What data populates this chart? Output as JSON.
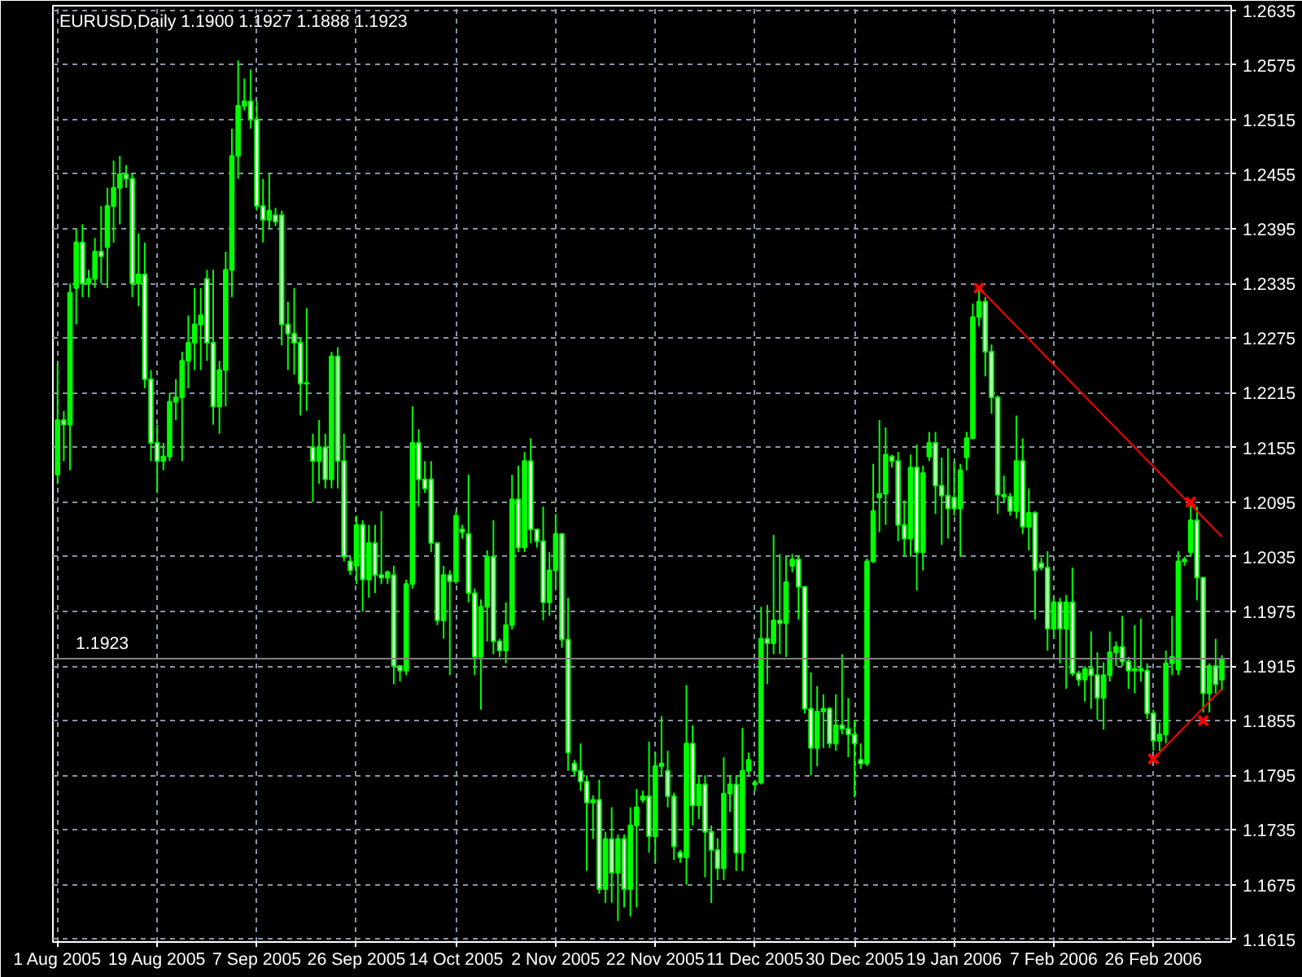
{
  "chart_data": {
    "type": "candlestick",
    "title": "EURUSD,Daily  1.1900 1.1927 1.1888 1.1923",
    "categories": [
      "1 Aug 2005",
      null,
      null,
      null,
      null,
      null,
      null,
      null,
      null,
      null,
      null,
      null,
      null,
      null,
      null,
      null,
      "19 Aug 2005",
      null,
      null,
      null,
      null,
      null,
      null,
      null,
      null,
      null,
      null,
      null,
      null,
      null,
      null,
      null,
      "7 Sep 2005",
      null,
      null,
      null,
      null,
      null,
      null,
      null,
      null,
      null,
      null,
      null,
      null,
      null,
      null,
      null,
      "26 Sep 2005",
      null,
      null,
      null,
      null,
      null,
      null,
      null,
      null,
      null,
      null,
      null,
      null,
      null,
      null,
      null,
      "14 Oct 2005",
      null,
      null,
      null,
      null,
      null,
      null,
      null,
      null,
      null,
      null,
      null,
      null,
      null,
      null,
      null,
      "2 Nov 2005",
      null,
      null,
      null,
      null,
      null,
      null,
      null,
      null,
      null,
      null,
      null,
      null,
      null,
      null,
      null,
      "22 Nov 2005",
      null,
      null,
      null,
      null,
      null,
      null,
      null,
      null,
      null,
      null,
      null,
      null,
      null,
      null,
      null,
      "11 Dec 2005",
      null,
      null,
      null,
      null,
      null,
      null,
      null,
      null,
      null,
      null,
      null,
      null,
      null,
      null,
      null,
      "30 Dec 2005",
      null,
      null,
      null,
      null,
      null,
      null,
      null,
      null,
      null,
      null,
      null,
      null,
      null,
      null,
      null,
      "19 Jan 2006",
      null,
      null,
      null,
      null,
      null,
      null,
      null,
      null,
      null,
      null,
      null,
      null,
      null,
      null,
      null,
      "7 Feb 2006",
      null,
      null,
      null,
      null,
      null,
      null,
      null,
      null,
      null,
      null,
      null,
      null,
      null,
      null,
      null,
      "26 Feb 2006",
      null,
      null,
      null,
      null,
      null,
      null,
      null,
      null,
      null,
      null,
      null
    ],
    "ylim": [
      1.1612,
      1.264
    ],
    "yticks": [
      1.1615,
      1.1675,
      1.1735,
      1.1795,
      1.1855,
      1.1915,
      1.1975,
      1.2035,
      1.2095,
      1.2155,
      1.2215,
      1.2275,
      1.2335,
      1.2395,
      1.2455,
      1.2515,
      1.2575,
      1.2635
    ],
    "grid": true,
    "ref_lines": [
      {
        "axis": "y",
        "value": 1.1923,
        "label": "1.1923",
        "color": "#808080"
      }
    ],
    "series": [
      {
        "color": "#00ff00",
        "ohlc": [
          [
            1.2125,
            1.2247,
            1.2115,
            1.2185
          ],
          [
            1.2185,
            1.2195,
            1.214,
            1.218
          ],
          [
            1.218,
            1.2335,
            1.213,
            1.2325
          ],
          [
            1.233,
            1.2395,
            1.229,
            1.238
          ],
          [
            1.238,
            1.24,
            1.232,
            1.2335
          ],
          [
            1.2335,
            1.235,
            1.232,
            1.234
          ],
          [
            1.234,
            1.2385,
            1.233,
            1.237
          ],
          [
            1.237,
            1.242,
            1.2335,
            1.2365
          ],
          [
            1.2375,
            1.244,
            1.233,
            1.242
          ],
          [
            1.242,
            1.247,
            1.238,
            1.244
          ],
          [
            1.244,
            1.2475,
            1.24,
            1.2455
          ],
          [
            1.2455,
            1.2465,
            1.244,
            1.245
          ],
          [
            1.245,
            1.2455,
            1.232,
            1.2335
          ],
          [
            1.2335,
            1.239,
            1.231,
            1.2345
          ],
          [
            1.2345,
            1.238,
            1.222,
            1.223
          ],
          [
            1.223,
            1.224,
            1.214,
            1.216
          ],
          [
            1.216,
            1.218,
            1.2105,
            1.214
          ],
          [
            1.214,
            1.216,
            1.213,
            1.2145
          ],
          [
            1.2145,
            1.2215,
            1.214,
            1.2205
          ],
          [
            1.2205,
            1.223,
            1.2185,
            1.221
          ],
          [
            1.221,
            1.226,
            1.214,
            1.225
          ],
          [
            1.225,
            1.23,
            1.222,
            1.227
          ],
          [
            1.227,
            1.233,
            1.224,
            1.229
          ],
          [
            1.229,
            1.233,
            1.224,
            1.23
          ],
          [
            1.234,
            1.235,
            1.225,
            1.227
          ],
          [
            1.227,
            1.235,
            1.218,
            1.22
          ],
          [
            1.22,
            1.225,
            1.217,
            1.224
          ],
          [
            1.224,
            1.237,
            1.22,
            1.235
          ],
          [
            1.235,
            1.2505,
            1.232,
            1.2475
          ],
          [
            1.2475,
            1.258,
            1.245,
            1.253
          ],
          [
            1.253,
            1.256,
            1.2525,
            1.2535
          ],
          [
            1.2535,
            1.257,
            1.2505,
            1.2515
          ],
          [
            1.2515,
            1.2535,
            1.2415,
            1.242
          ],
          [
            1.242,
            1.245,
            1.238,
            1.2405
          ],
          [
            1.2405,
            1.2456,
            1.2395,
            1.2415
          ],
          [
            1.241,
            1.2418,
            1.2398,
            1.2403
          ],
          [
            1.241,
            1.2415,
            1.2267,
            1.229
          ],
          [
            1.229,
            1.2315,
            1.224,
            1.228
          ],
          [
            1.228,
            1.233,
            1.2235,
            1.227
          ],
          [
            1.227,
            1.2275,
            1.219,
            1.2225
          ],
          [
            1.2225,
            1.2308,
            1.2195,
            1.2226
          ],
          [
            1.2155,
            1.217,
            1.2095,
            1.214
          ],
          [
            1.214,
            1.2185,
            1.2115,
            1.2155
          ],
          [
            1.2155,
            1.217,
            1.211,
            1.212
          ],
          [
            1.212,
            1.226,
            1.211,
            1.2255
          ],
          [
            1.2255,
            1.2265,
            1.211,
            1.214
          ],
          [
            1.214,
            1.217,
            1.203,
            1.2035
          ],
          [
            1.203,
            1.2035,
            1.2015,
            1.202
          ],
          [
            1.2025,
            1.208,
            1.2005,
            1.207
          ],
          [
            1.207,
            1.2075,
            1.1975,
            1.201
          ],
          [
            1.201,
            1.207,
            1.199,
            1.205
          ],
          [
            1.205,
            1.207,
            1.1995,
            1.2015
          ],
          [
            1.2015,
            1.2085,
            1.2005,
            1.2012
          ],
          [
            1.2012,
            1.202,
            1.2005,
            1.2018
          ],
          [
            1.2015,
            1.2025,
            1.1895,
            1.1915
          ],
          [
            1.1915,
            1.1915,
            1.1898,
            1.191
          ],
          [
            1.191,
            1.201,
            1.1905,
            1.2005
          ],
          [
            1.2005,
            1.22,
            1.2,
            1.216
          ],
          [
            1.216,
            1.2175,
            1.209,
            1.212
          ],
          [
            1.212,
            1.214,
            1.2105,
            1.211
          ],
          [
            1.212,
            1.214,
            1.204,
            1.205
          ],
          [
            1.205,
            1.205,
            1.196,
            1.1965
          ],
          [
            1.1965,
            1.2025,
            1.1945,
            1.2015
          ],
          [
            1.2015,
            1.202,
            1.1905,
            1.2008
          ],
          [
            1.2008,
            1.2085,
            1.2005,
            1.208
          ],
          [
            1.2065,
            1.207,
            1.2055,
            1.2062
          ],
          [
            1.206,
            1.2125,
            1.1985,
            1.1995
          ],
          [
            1.1995,
            1.2,
            1.1905,
            1.1925
          ],
          [
            1.1925,
            1.1988,
            1.1867,
            1.198
          ],
          [
            1.198,
            1.2042,
            1.1942,
            1.2035
          ],
          [
            1.2035,
            1.2075,
            1.1928,
            1.1942
          ],
          [
            1.1942,
            1.1945,
            1.1925,
            1.1932
          ],
          [
            1.1932,
            1.1985,
            1.1918,
            1.196
          ],
          [
            1.196,
            1.2125,
            1.1955,
            1.2098
          ],
          [
            1.2098,
            1.2135,
            1.204,
            1.2045
          ],
          [
            1.2045,
            1.215,
            1.204,
            1.214
          ],
          [
            1.214,
            1.2165,
            1.205,
            1.2065
          ],
          [
            1.2065,
            1.2065,
            1.2045,
            1.2052
          ],
          [
            1.2052,
            1.209,
            1.1965,
            1.1985
          ],
          [
            1.1985,
            1.204,
            1.197,
            1.202
          ],
          [
            1.202,
            1.2082,
            1.2,
            1.206
          ],
          [
            1.206,
            1.206,
            1.1935,
            1.1944
          ],
          [
            1.1944,
            1.199,
            1.18,
            1.182
          ],
          [
            1.1808,
            1.1812,
            1.1795,
            1.18
          ],
          [
            1.18,
            1.183,
            1.1778,
            1.1788
          ],
          [
            1.1788,
            1.1795,
            1.169,
            1.1765
          ],
          [
            1.1765,
            1.1773,
            1.1725,
            1.1768
          ],
          [
            1.1768,
            1.179,
            1.1665,
            1.167
          ],
          [
            1.167,
            1.1733,
            1.1655,
            1.1725
          ],
          [
            1.1725,
            1.176,
            1.1655,
            1.1688
          ],
          [
            1.1688,
            1.173,
            1.1635,
            1.1725
          ],
          [
            1.1725,
            1.173,
            1.165,
            1.167
          ],
          [
            1.167,
            1.176,
            1.164,
            1.174
          ],
          [
            1.174,
            1.178,
            1.165,
            1.176
          ],
          [
            1.1768,
            1.1778,
            1.1765,
            1.1772
          ],
          [
            1.1772,
            1.1832,
            1.171,
            1.1728
          ],
          [
            1.1728,
            1.182,
            1.17,
            1.1805
          ],
          [
            1.1805,
            1.186,
            1.1795,
            1.1808
          ],
          [
            1.18,
            1.1822,
            1.176,
            1.1772
          ],
          [
            1.1772,
            1.1776,
            1.1702,
            1.1717
          ],
          [
            1.171,
            1.1713,
            1.1699,
            1.1705
          ],
          [
            1.1705,
            1.1894,
            1.1675,
            1.183
          ],
          [
            1.183,
            1.185,
            1.174,
            1.1762
          ],
          [
            1.1762,
            1.1795,
            1.1747,
            1.1785
          ],
          [
            1.1785,
            1.1795,
            1.1683,
            1.1733
          ],
          [
            1.1733,
            1.174,
            1.1655,
            1.1713
          ],
          [
            1.1713,
            1.1726,
            1.168,
            1.1693
          ],
          [
            1.1693,
            1.1815,
            1.168,
            1.1775
          ],
          [
            1.1775,
            1.1795,
            1.1755,
            1.1785
          ],
          [
            1.1785,
            1.1795,
            1.169,
            1.171
          ],
          [
            1.171,
            1.1847,
            1.169,
            1.18
          ],
          [
            1.18,
            1.182,
            1.1795,
            1.1812
          ],
          [
            1.1785,
            1.179,
            1.1778,
            1.1787
          ],
          [
            1.1787,
            1.198,
            1.1785,
            1.1945
          ],
          [
            1.1945,
            1.1982,
            1.1895,
            1.194
          ],
          [
            1.194,
            1.2059,
            1.1928,
            1.1965
          ],
          [
            1.1965,
            1.2038,
            1.1928,
            1.1962
          ],
          [
            1.1962,
            1.2035,
            1.1925,
            1.2007
          ],
          [
            1.2025,
            1.2038,
            1.2018,
            1.2032
          ],
          [
            1.2032,
            1.2035,
            1.1966,
            1.2002
          ],
          [
            1.2002,
            1.2002,
            1.1863,
            1.1868
          ],
          [
            1.1868,
            1.1908,
            1.1795,
            1.1825
          ],
          [
            1.1825,
            1.1893,
            1.1805,
            1.1865
          ],
          [
            1.1865,
            1.1884,
            1.1825,
            1.1868
          ],
          [
            1.1868,
            1.187,
            1.1825,
            1.183
          ],
          [
            1.183,
            1.1884,
            1.1822,
            1.185
          ],
          [
            1.185,
            1.1928,
            1.184,
            1.1846
          ],
          [
            1.1846,
            1.188,
            1.1815,
            1.184
          ],
          [
            1.184,
            1.1856,
            1.1771,
            1.183
          ],
          [
            1.1812,
            1.183,
            1.1802,
            1.1808
          ],
          [
            1.1808,
            1.2033,
            1.1805,
            1.203
          ],
          [
            1.203,
            1.2137,
            1.2028,
            1.2085
          ],
          [
            1.21,
            1.2185,
            1.2062,
            1.2104
          ],
          [
            1.2104,
            1.2177,
            1.207,
            1.2147
          ],
          [
            1.2145,
            1.2147,
            1.2133,
            1.214
          ],
          [
            1.214,
            1.215,
            1.2052,
            1.207
          ],
          [
            1.207,
            1.2097,
            1.2035,
            1.2055
          ],
          [
            1.2055,
            1.2147,
            1.2035,
            1.2133
          ],
          [
            1.2133,
            1.2158,
            1.1998,
            1.204
          ],
          [
            1.204,
            1.2135,
            1.202,
            1.2127
          ],
          [
            1.2145,
            1.2172,
            1.214,
            1.216
          ],
          [
            1.216,
            1.2172,
            1.2082,
            1.2113
          ],
          [
            1.2113,
            1.2144,
            1.2048,
            1.2102
          ],
          [
            1.2102,
            1.2154,
            1.2055,
            1.2088
          ],
          [
            1.21,
            1.214,
            1.208,
            1.2088
          ],
          [
            1.2088,
            1.2137,
            1.2035,
            1.213
          ],
          [
            1.2144,
            1.2172,
            1.213,
            1.2165
          ],
          [
            1.2165,
            1.2313,
            1.2164,
            1.2298
          ],
          [
            1.2298,
            1.233,
            1.2288,
            1.2315
          ],
          [
            1.2315,
            1.232,
            1.2233,
            1.226
          ],
          [
            1.226,
            1.2268,
            1.2192,
            1.221
          ],
          [
            1.221,
            1.2212,
            1.2082,
            1.2103
          ],
          [
            1.2103,
            1.2124,
            1.2095,
            1.2101
          ],
          [
            1.2101,
            1.2105,
            1.208,
            1.2085
          ],
          [
            1.2085,
            1.219,
            1.2077,
            1.214
          ],
          [
            1.214,
            1.2165,
            1.206,
            1.2068
          ],
          [
            1.2068,
            1.211,
            1.2042,
            1.2083
          ],
          [
            1.2083,
            1.2085,
            1.1966,
            1.202
          ],
          [
            1.2028,
            1.2034,
            1.202,
            1.2023
          ],
          [
            1.2023,
            1.2041,
            1.1932,
            1.1956
          ],
          [
            1.1956,
            1.199,
            1.1945,
            1.1985
          ],
          [
            1.1985,
            1.199,
            1.1918,
            1.1956
          ],
          [
            1.1956,
            1.1993,
            1.189,
            1.1985
          ],
          [
            1.1985,
            1.2023,
            1.1904,
            1.1907
          ],
          [
            1.1907,
            1.191,
            1.1893,
            1.19
          ],
          [
            1.19,
            1.1915,
            1.1876,
            1.1912
          ],
          [
            1.1912,
            1.1953,
            1.1868,
            1.1905
          ],
          [
            1.1905,
            1.193,
            1.1856,
            1.188
          ],
          [
            1.188,
            1.1919,
            1.1845,
            1.1905
          ],
          [
            1.1905,
            1.1953,
            1.1898,
            1.193
          ],
          [
            1.193,
            1.1942,
            1.1915,
            1.1936
          ],
          [
            1.1936,
            1.197,
            1.1915,
            1.192
          ],
          [
            1.192,
            1.1925,
            1.189,
            1.191
          ],
          [
            1.191,
            1.196,
            1.1885,
            1.1912
          ],
          [
            1.1912,
            1.1967,
            1.1898,
            1.191
          ],
          [
            1.191,
            1.1918,
            1.1857,
            1.1863
          ],
          [
            1.1863,
            1.1867,
            1.1822,
            1.1833
          ],
          [
            1.1833,
            1.1853,
            1.1822,
            1.184
          ],
          [
            1.184,
            1.1932,
            1.183,
            1.1918
          ],
          [
            1.1918,
            1.197,
            1.1905,
            1.1925
          ],
          [
            1.1911,
            1.2041,
            1.1905,
            1.203
          ],
          [
            1.203,
            1.2035,
            1.2025,
            1.2032
          ],
          [
            1.204,
            1.2093,
            1.2035,
            1.2075
          ],
          [
            1.2075,
            1.209,
            1.1987,
            1.2012
          ],
          [
            1.2012,
            1.2012,
            1.1864,
            1.1885
          ],
          [
            1.1885,
            1.1918,
            1.1864,
            1.1915
          ],
          [
            1.1915,
            1.1945,
            1.1885,
            1.1895
          ],
          [
            1.19,
            1.1927,
            1.1888,
            1.1923
          ]
        ]
      },
      {
        "type": "line",
        "color": "#ff0000",
        "values": [
          null,
          null,
          null,
          null,
          null,
          null,
          null,
          null,
          null,
          null,
          null,
          null,
          null,
          null,
          null,
          null,
          null,
          null,
          null,
          null,
          null,
          null,
          null,
          null,
          null,
          null,
          null,
          null,
          null,
          null,
          null,
          null,
          null,
          null,
          null,
          null,
          null,
          null,
          null,
          null,
          null,
          null,
          null,
          null,
          null,
          null,
          null,
          null,
          null,
          null,
          null,
          null,
          null,
          null,
          null,
          null,
          null,
          null,
          null,
          null,
          null,
          null,
          null,
          null,
          null,
          null,
          null,
          null,
          null,
          null,
          null,
          null,
          null,
          null,
          null,
          null,
          null,
          null,
          null,
          null,
          null,
          null,
          null,
          null,
          null,
          null,
          null,
          null,
          null,
          null,
          null,
          null,
          null,
          null,
          null,
          null,
          null,
          null,
          null,
          null,
          null,
          null,
          null,
          null,
          null,
          null,
          null,
          null,
          null,
          null,
          null,
          null,
          null,
          null,
          null,
          null,
          null,
          null,
          null,
          null,
          null,
          null,
          null,
          null,
          null,
          null,
          null,
          null,
          null,
          null,
          null,
          null,
          null,
          null,
          null,
          null,
          null,
          null,
          null,
          null,
          null,
          null,
          null,
          null,
          null,
          null,
          null,
          null,
          1.233,
          1.2323,
          1.2316,
          1.2309,
          1.2302,
          1.2295,
          1.2288,
          1.2281,
          1.2274,
          1.2267,
          1.226,
          1.2253,
          1.2246,
          1.2239,
          1.2232,
          1.2225,
          1.2218,
          1.2211,
          1.2204,
          1.2197,
          1.219,
          1.2183,
          1.2176,
          1.2169,
          1.2162,
          1.2155,
          1.2148,
          1.2141,
          1.2134,
          1.2127,
          1.212,
          1.2113,
          1.2106,
          1.2099,
          1.2092,
          1.2085,
          1.2078,
          1.2071,
          1.2064,
          1.2057
        ]
      },
      {
        "type": "line",
        "color": "#ff0000",
        "values": [
          null,
          null,
          null,
          null,
          null,
          null,
          null,
          null,
          null,
          null,
          null,
          null,
          null,
          null,
          null,
          null,
          null,
          null,
          null,
          null,
          null,
          null,
          null,
          null,
          null,
          null,
          null,
          null,
          null,
          null,
          null,
          null,
          null,
          null,
          null,
          null,
          null,
          null,
          null,
          null,
          null,
          null,
          null,
          null,
          null,
          null,
          null,
          null,
          null,
          null,
          null,
          null,
          null,
          null,
          null,
          null,
          null,
          null,
          null,
          null,
          null,
          null,
          null,
          null,
          null,
          null,
          null,
          null,
          null,
          null,
          null,
          null,
          null,
          null,
          null,
          null,
          null,
          null,
          null,
          null,
          null,
          null,
          null,
          null,
          null,
          null,
          null,
          null,
          null,
          null,
          null,
          null,
          null,
          null,
          null,
          null,
          null,
          null,
          null,
          null,
          null,
          null,
          null,
          null,
          null,
          null,
          null,
          null,
          null,
          null,
          null,
          null,
          null,
          null,
          null,
          null,
          null,
          null,
          null,
          null,
          null,
          null,
          null,
          null,
          null,
          null,
          null,
          null,
          null,
          null,
          null,
          null,
          null,
          null,
          null,
          null,
          null,
          null,
          null,
          null,
          null,
          null,
          null,
          null,
          null,
          null,
          null,
          null,
          null,
          null,
          null,
          null,
          null,
          null,
          null,
          null,
          null,
          null,
          null,
          null,
          null,
          null,
          null,
          null,
          null,
          null,
          null,
          null,
          null,
          null,
          null,
          null,
          null,
          null,
          null,
          null,
          1.1813,
          1.182,
          1.1827,
          1.1834,
          1.1841,
          1.1848,
          1.1855,
          1.1862,
          1.1869,
          1.1876,
          1.1883,
          1.189
        ]
      },
      {
        "type": "scatter",
        "color": "#ff0000",
        "marker": "cross",
        "values": [
          null,
          null,
          null,
          null,
          null,
          null,
          null,
          null,
          null,
          null,
          null,
          null,
          null,
          null,
          null,
          null,
          null,
          null,
          null,
          null,
          null,
          null,
          null,
          null,
          null,
          null,
          null,
          null,
          null,
          null,
          null,
          null,
          null,
          null,
          null,
          null,
          null,
          null,
          null,
          null,
          null,
          null,
          null,
          null,
          null,
          null,
          null,
          null,
          null,
          null,
          null,
          null,
          null,
          null,
          null,
          null,
          null,
          null,
          null,
          null,
          null,
          null,
          null,
          null,
          null,
          null,
          null,
          null,
          null,
          null,
          null,
          null,
          null,
          null,
          null,
          null,
          null,
          null,
          null,
          null,
          null,
          null,
          null,
          null,
          null,
          null,
          null,
          null,
          null,
          null,
          null,
          null,
          null,
          null,
          null,
          null,
          null,
          null,
          null,
          null,
          null,
          null,
          null,
          null,
          null,
          null,
          null,
          null,
          null,
          null,
          null,
          null,
          null,
          null,
          null,
          null,
          null,
          null,
          null,
          null,
          null,
          null,
          null,
          null,
          null,
          null,
          null,
          null,
          null,
          null,
          null,
          null,
          null,
          null,
          null,
          null,
          null,
          null,
          null,
          null,
          null,
          null,
          null,
          null,
          null,
          null,
          null,
          null,
          1.233,
          null,
          null,
          null,
          null,
          null,
          null,
          null,
          null,
          null,
          null,
          null,
          null,
          null,
          null,
          null,
          null,
          null,
          null,
          null,
          null,
          null,
          null,
          null,
          null,
          null,
          null,
          null,
          1.1813,
          null,
          null,
          null,
          null,
          null,
          1.2095,
          null,
          1.1855,
          null,
          null,
          null
        ]
      }
    ]
  }
}
